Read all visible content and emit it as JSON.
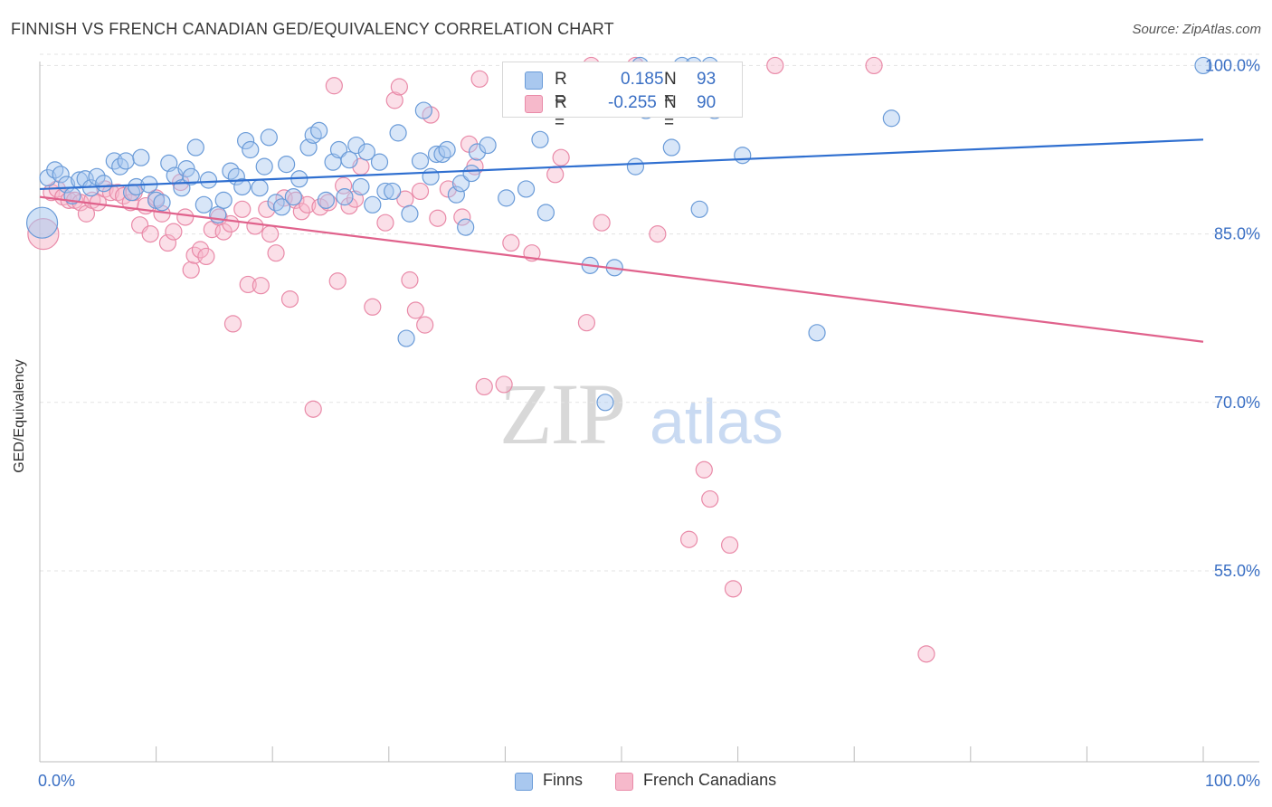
{
  "title": "FINNISH VS FRENCH CANADIAN GED/EQUIVALENCY CORRELATION CHART",
  "source": "Source: ZipAtlas.com",
  "watermark": {
    "zip": "ZIP",
    "atlas": "atlas"
  },
  "colors": {
    "finns_fill": "#a9c8ef",
    "finns_stroke": "#6a9bd8",
    "finns_line": "#2f6fd0",
    "fc_fill": "#f6b9cb",
    "fc_stroke": "#e98aa8",
    "fc_line": "#e0628c",
    "tick_label": "#3a6fc4"
  },
  "legend": {
    "rows": [
      {
        "r_label": "R =",
        "r_value": "0.185",
        "n_label": "N =",
        "n_value": "93"
      },
      {
        "r_label": "R =",
        "r_value": "-0.255",
        "n_label": "N =",
        "n_value": "90"
      }
    ]
  },
  "bottom_legend": [
    "Finns",
    "French Canadians"
  ],
  "chart_data": {
    "type": "scatter",
    "title": "FINNISH VS FRENCH CANADIAN GED/EQUIVALENCY CORRELATION CHART",
    "xlabel": "",
    "ylabel": "GED/Equivalency",
    "xlim": [
      0,
      100
    ],
    "ylim": [
      38,
      101
    ],
    "x_tick_labels": [
      "0.0%",
      "100.0%"
    ],
    "y_ticks": [
      55,
      70,
      85,
      100
    ],
    "y_tick_labels": [
      "55.0%",
      "70.0%",
      "85.0%",
      "100.0%"
    ],
    "grid": true,
    "legend_position": "top-center",
    "series": [
      {
        "name": "Finns",
        "r": 0.185,
        "n": 93,
        "trend": {
          "x": [
            0,
            100
          ],
          "y": [
            89.0,
            93.4
          ]
        },
        "points": [
          [
            0.2,
            86.0
          ],
          [
            0.7,
            90.0
          ],
          [
            1.3,
            90.7
          ],
          [
            1.8,
            90.3
          ],
          [
            2.3,
            89.4
          ],
          [
            2.8,
            88.4
          ],
          [
            3.4,
            89.8
          ],
          [
            3.9,
            89.9
          ],
          [
            4.4,
            89.1
          ],
          [
            4.9,
            90.1
          ],
          [
            5.5,
            89.5
          ],
          [
            6.4,
            91.5
          ],
          [
            6.9,
            91.0
          ],
          [
            7.4,
            91.5
          ],
          [
            7.9,
            88.7
          ],
          [
            8.3,
            89.2
          ],
          [
            8.7,
            91.8
          ],
          [
            9.4,
            89.4
          ],
          [
            10.0,
            88.0
          ],
          [
            10.5,
            87.8
          ],
          [
            11.1,
            91.3
          ],
          [
            11.6,
            90.2
          ],
          [
            12.2,
            89.1
          ],
          [
            12.6,
            90.8
          ],
          [
            13.0,
            90.1
          ],
          [
            13.4,
            92.7
          ],
          [
            14.1,
            87.6
          ],
          [
            14.5,
            89.8
          ],
          [
            15.3,
            86.7
          ],
          [
            15.8,
            88.0
          ],
          [
            16.4,
            90.6
          ],
          [
            16.9,
            90.1
          ],
          [
            17.4,
            89.2
          ],
          [
            17.7,
            93.3
          ],
          [
            18.1,
            92.5
          ],
          [
            18.9,
            89.1
          ],
          [
            19.3,
            91.0
          ],
          [
            19.7,
            93.6
          ],
          [
            20.3,
            87.8
          ],
          [
            20.8,
            87.4
          ],
          [
            21.2,
            91.2
          ],
          [
            21.8,
            88.3
          ],
          [
            22.3,
            89.9
          ],
          [
            23.1,
            92.7
          ],
          [
            23.5,
            93.8
          ],
          [
            24.0,
            94.2
          ],
          [
            24.6,
            88.0
          ],
          [
            25.2,
            91.4
          ],
          [
            25.7,
            92.5
          ],
          [
            26.2,
            88.3
          ],
          [
            26.6,
            91.6
          ],
          [
            27.2,
            92.9
          ],
          [
            27.6,
            89.2
          ],
          [
            28.1,
            92.3
          ],
          [
            28.6,
            87.6
          ],
          [
            29.2,
            91.4
          ],
          [
            29.7,
            88.8
          ],
          [
            30.3,
            88.8
          ],
          [
            30.8,
            94.0
          ],
          [
            31.5,
            75.7
          ],
          [
            31.8,
            86.8
          ],
          [
            32.7,
            91.5
          ],
          [
            33.0,
            96.0
          ],
          [
            33.6,
            90.1
          ],
          [
            34.1,
            92.1
          ],
          [
            34.6,
            92.1
          ],
          [
            35.0,
            92.5
          ],
          [
            35.8,
            88.5
          ],
          [
            36.2,
            89.5
          ],
          [
            36.6,
            85.6
          ],
          [
            37.1,
            90.4
          ],
          [
            37.6,
            92.3
          ],
          [
            38.5,
            92.9
          ],
          [
            40.1,
            88.2
          ],
          [
            41.2,
            98.6
          ],
          [
            41.8,
            89.0
          ],
          [
            43.0,
            93.4
          ],
          [
            43.5,
            86.9
          ],
          [
            47.3,
            82.2
          ],
          [
            48.6,
            70.0
          ],
          [
            49.4,
            82.0
          ],
          [
            51.2,
            91.0
          ],
          [
            51.6,
            100.0
          ],
          [
            52.1,
            96.0
          ],
          [
            54.3,
            92.7
          ],
          [
            55.2,
            100.0
          ],
          [
            56.2,
            100.0
          ],
          [
            56.7,
            87.2
          ],
          [
            57.6,
            100.0
          ],
          [
            58.0,
            96.0
          ],
          [
            60.4,
            92.0
          ],
          [
            66.8,
            76.2
          ],
          [
            73.2,
            95.3
          ],
          [
            100.0,
            100.0
          ]
        ]
      },
      {
        "name": "French Canadians",
        "r": -0.255,
        "n": 90,
        "trend": {
          "x": [
            0,
            100
          ],
          "y": [
            88.3,
            75.4
          ]
        },
        "points": [
          [
            0.3,
            85.0
          ],
          [
            1.0,
            88.7
          ],
          [
            1.5,
            89.0
          ],
          [
            2.0,
            88.3
          ],
          [
            2.5,
            88.0
          ],
          [
            3.0,
            88.0
          ],
          [
            3.5,
            87.8
          ],
          [
            4.0,
            86.8
          ],
          [
            4.5,
            88.0
          ],
          [
            5.0,
            87.8
          ],
          [
            5.6,
            89.0
          ],
          [
            6.1,
            88.7
          ],
          [
            6.7,
            88.7
          ],
          [
            7.2,
            88.4
          ],
          [
            7.8,
            87.8
          ],
          [
            8.1,
            88.7
          ],
          [
            8.6,
            85.8
          ],
          [
            9.1,
            87.5
          ],
          [
            9.5,
            85.0
          ],
          [
            10.0,
            88.2
          ],
          [
            10.5,
            86.8
          ],
          [
            11.0,
            84.2
          ],
          [
            11.5,
            85.2
          ],
          [
            12.1,
            89.6
          ],
          [
            12.5,
            86.5
          ],
          [
            13.0,
            81.8
          ],
          [
            13.3,
            83.1
          ],
          [
            13.8,
            83.6
          ],
          [
            14.3,
            83.0
          ],
          [
            14.8,
            85.4
          ],
          [
            15.4,
            86.5
          ],
          [
            15.8,
            85.2
          ],
          [
            16.4,
            85.9
          ],
          [
            16.6,
            77.0
          ],
          [
            17.4,
            87.2
          ],
          [
            17.9,
            80.5
          ],
          [
            18.5,
            85.7
          ],
          [
            19.0,
            80.4
          ],
          [
            19.5,
            87.2
          ],
          [
            19.8,
            85.0
          ],
          [
            20.3,
            83.3
          ],
          [
            21.0,
            88.2
          ],
          [
            21.5,
            79.2
          ],
          [
            22.0,
            88.0
          ],
          [
            22.5,
            87.0
          ],
          [
            23.0,
            87.6
          ],
          [
            23.5,
            69.4
          ],
          [
            24.1,
            87.4
          ],
          [
            24.8,
            87.8
          ],
          [
            25.3,
            98.2
          ],
          [
            25.6,
            80.8
          ],
          [
            26.1,
            89.3
          ],
          [
            26.6,
            87.5
          ],
          [
            27.1,
            88.1
          ],
          [
            27.6,
            91.0
          ],
          [
            28.6,
            78.5
          ],
          [
            29.7,
            86.0
          ],
          [
            30.5,
            96.9
          ],
          [
            30.9,
            98.1
          ],
          [
            31.4,
            88.1
          ],
          [
            31.8,
            80.9
          ],
          [
            32.3,
            78.2
          ],
          [
            32.7,
            88.8
          ],
          [
            33.1,
            76.9
          ],
          [
            33.6,
            95.6
          ],
          [
            34.2,
            86.4
          ],
          [
            35.1,
            89.0
          ],
          [
            36.3,
            86.5
          ],
          [
            36.9,
            93.0
          ],
          [
            37.4,
            91.0
          ],
          [
            37.8,
            98.8
          ],
          [
            38.2,
            71.4
          ],
          [
            39.9,
            71.6
          ],
          [
            40.5,
            84.2
          ],
          [
            42.3,
            83.3
          ],
          [
            44.3,
            90.3
          ],
          [
            44.8,
            91.8
          ],
          [
            47.0,
            77.1
          ],
          [
            47.4,
            100.0
          ],
          [
            48.3,
            86.0
          ],
          [
            51.2,
            100.0
          ],
          [
            53.1,
            85.0
          ],
          [
            55.8,
            57.8
          ],
          [
            57.1,
            64.0
          ],
          [
            57.6,
            61.4
          ],
          [
            59.3,
            57.3
          ],
          [
            59.6,
            53.4
          ],
          [
            63.2,
            100.0
          ],
          [
            71.7,
            100.0
          ],
          [
            76.2,
            47.6
          ]
        ]
      }
    ]
  }
}
